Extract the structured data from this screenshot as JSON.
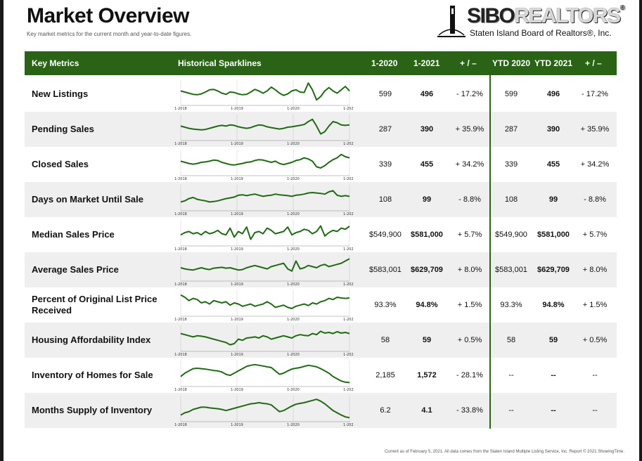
{
  "header": {
    "title": "Market Overview",
    "subtitle": "Key market metrics for the current month and year-to-date figures."
  },
  "logo": {
    "brand_a": "SIBO",
    "brand_b": "REALTORS",
    "registered": "®",
    "tagline": "Staten Island Board of Realtors®, Inc."
  },
  "columns": {
    "metrics": "Key Metrics",
    "sparklines": "Historical Sparklines",
    "month_prev": "1-2020",
    "month_cur": "1-2021",
    "change": "+ / –",
    "ytd_prev": "YTD 2020",
    "ytd_cur": "YTD 2021",
    "ytd_change": "+ / –"
  },
  "spark_ticks": [
    "1-2018",
    "1-2019",
    "1-2020",
    "1-2021"
  ],
  "rows": [
    {
      "metric": "New Listings",
      "m_prev": "599",
      "m_cur": "496",
      "m_chg": "- 17.2%",
      "y_prev": "599",
      "y_cur": "496",
      "y_chg": "- 17.2%",
      "spark": [
        0.55,
        0.5,
        0.45,
        0.4,
        0.38,
        0.42,
        0.5,
        0.6,
        0.62,
        0.55,
        0.45,
        0.4,
        0.5,
        0.48,
        0.42,
        0.38,
        0.4,
        0.5,
        0.62,
        0.55,
        0.45,
        0.55,
        0.72,
        0.6,
        0.45,
        0.35,
        0.42,
        0.55,
        0.6,
        0.5,
        0.48,
        0.9,
        0.6,
        0.15,
        0.3,
        0.55,
        0.7,
        0.55,
        0.45,
        0.6,
        0.75,
        0.55
      ]
    },
    {
      "metric": "Pending Sales",
      "m_prev": "287",
      "m_cur": "390",
      "m_chg": "+ 35.9%",
      "y_prev": "287",
      "y_cur": "390",
      "y_chg": "+ 35.9%",
      "spark": [
        0.55,
        0.5,
        0.45,
        0.42,
        0.4,
        0.38,
        0.4,
        0.45,
        0.5,
        0.55,
        0.58,
        0.55,
        0.6,
        0.58,
        0.52,
        0.48,
        0.45,
        0.48,
        0.55,
        0.6,
        0.58,
        0.52,
        0.48,
        0.45,
        0.42,
        0.45,
        0.5,
        0.52,
        0.55,
        0.58,
        0.62,
        0.75,
        0.85,
        0.55,
        0.2,
        0.3,
        0.55,
        0.75,
        0.7,
        0.6,
        0.58,
        0.6
      ]
    },
    {
      "metric": "Closed Sales",
      "m_prev": "339",
      "m_cur": "455",
      "m_chg": "+ 34.2%",
      "y_prev": "339",
      "y_cur": "455",
      "y_chg": "+ 34.2%",
      "spark": [
        0.55,
        0.5,
        0.45,
        0.42,
        0.45,
        0.5,
        0.52,
        0.55,
        0.6,
        0.58,
        0.5,
        0.45,
        0.4,
        0.38,
        0.42,
        0.45,
        0.5,
        0.52,
        0.58,
        0.62,
        0.6,
        0.55,
        0.5,
        0.55,
        0.45,
        0.4,
        0.45,
        0.5,
        0.58,
        0.62,
        0.7,
        0.65,
        0.55,
        0.3,
        0.25,
        0.35,
        0.5,
        0.62,
        0.7,
        0.85,
        0.75,
        0.7
      ]
    },
    {
      "metric": "Days on Market Until Sale",
      "m_prev": "108",
      "m_cur": "99",
      "m_chg": "- 8.8%",
      "y_prev": "108",
      "y_cur": "99",
      "y_chg": "- 8.8%",
      "spark": [
        0.3,
        0.35,
        0.45,
        0.5,
        0.42,
        0.38,
        0.35,
        0.3,
        0.32,
        0.35,
        0.4,
        0.45,
        0.48,
        0.52,
        0.6,
        0.62,
        0.58,
        0.62,
        0.65,
        0.6,
        0.55,
        0.58,
        0.6,
        0.65,
        0.62,
        0.6,
        0.58,
        0.55,
        0.6,
        0.62,
        0.65,
        0.7,
        0.72,
        0.7,
        0.68,
        0.65,
        0.75,
        0.8,
        0.6,
        0.55,
        0.58,
        0.55
      ]
    },
    {
      "metric": "Median Sales Price",
      "m_prev": "$549,900",
      "m_cur": "$581,000",
      "m_chg": "+ 5.7%",
      "y_prev": "$549,900",
      "y_cur": "$581,000",
      "y_chg": "+ 5.7%",
      "spark": [
        0.4,
        0.5,
        0.55,
        0.45,
        0.5,
        0.4,
        0.55,
        0.45,
        0.5,
        0.6,
        0.45,
        0.4,
        0.7,
        0.3,
        0.55,
        0.45,
        0.75,
        0.2,
        0.5,
        0.55,
        0.45,
        0.7,
        0.6,
        0.45,
        0.5,
        0.55,
        0.75,
        0.4,
        0.5,
        0.55,
        0.65,
        0.6,
        0.45,
        0.55,
        0.8,
        0.35,
        0.5,
        0.6,
        0.55,
        0.7,
        0.65,
        0.78
      ]
    },
    {
      "metric": "Average Sales Price",
      "m_prev": "$583,001",
      "m_cur": "$629,709",
      "m_chg": "+ 8.0%",
      "y_prev": "$583,001",
      "y_cur": "$629,709",
      "y_chg": "+ 8.0%",
      "spark": [
        0.5,
        0.45,
        0.42,
        0.4,
        0.45,
        0.5,
        0.45,
        0.42,
        0.48,
        0.5,
        0.52,
        0.48,
        0.5,
        0.45,
        0.4,
        0.42,
        0.5,
        0.55,
        0.6,
        0.55,
        0.5,
        0.45,
        0.55,
        0.6,
        0.65,
        0.7,
        0.45,
        0.35,
        0.8,
        0.45,
        0.5,
        0.6,
        0.55,
        0.5,
        0.6,
        0.65,
        0.55,
        0.6,
        0.65,
        0.7,
        0.8,
        0.9
      ]
    },
    {
      "metric": "Percent of Original List Price Received",
      "m_prev": "93.3%",
      "m_cur": "94.8%",
      "m_chg": "+ 1.5%",
      "y_prev": "93.3%",
      "y_cur": "94.8%",
      "y_chg": "+ 1.5%",
      "spark": [
        0.85,
        0.75,
        0.6,
        0.7,
        0.65,
        0.5,
        0.55,
        0.45,
        0.6,
        0.55,
        0.5,
        0.55,
        0.4,
        0.5,
        0.45,
        0.35,
        0.4,
        0.45,
        0.35,
        0.4,
        0.45,
        0.55,
        0.45,
        0.3,
        0.35,
        0.4,
        0.3,
        0.25,
        0.35,
        0.4,
        0.45,
        0.38,
        0.5,
        0.45,
        0.55,
        0.6,
        0.7,
        0.65,
        0.75,
        0.72,
        0.7,
        0.72
      ]
    },
    {
      "metric": "Housing Affordability Index",
      "m_prev": "58",
      "m_cur": "59",
      "m_chg": "+ 0.5%",
      "y_prev": "58",
      "y_cur": "59",
      "y_chg": "+ 0.5%",
      "spark": [
        0.7,
        0.65,
        0.6,
        0.55,
        0.6,
        0.58,
        0.55,
        0.5,
        0.45,
        0.4,
        0.35,
        0.3,
        0.2,
        0.25,
        0.45,
        0.4,
        0.5,
        0.52,
        0.55,
        0.5,
        0.6,
        0.55,
        0.45,
        0.5,
        0.55,
        0.6,
        0.55,
        0.5,
        0.6,
        0.65,
        0.62,
        0.6,
        0.7,
        0.65,
        0.8,
        0.72,
        0.75,
        0.7,
        0.78,
        0.72,
        0.75,
        0.7
      ]
    },
    {
      "metric": "Inventory of Homes for Sale",
      "m_prev": "2,185",
      "m_cur": "1,572",
      "m_chg": "- 28.1%",
      "y_prev": "--",
      "y_cur": "--",
      "y_chg": "--",
      "spark": [
        0.35,
        0.5,
        0.6,
        0.7,
        0.72,
        0.7,
        0.68,
        0.65,
        0.62,
        0.6,
        0.55,
        0.45,
        0.4,
        0.5,
        0.6,
        0.7,
        0.8,
        0.85,
        0.88,
        0.85,
        0.82,
        0.78,
        0.75,
        0.6,
        0.45,
        0.5,
        0.6,
        0.68,
        0.72,
        0.75,
        0.8,
        0.85,
        0.82,
        0.78,
        0.7,
        0.6,
        0.5,
        0.35,
        0.25,
        0.15,
        0.1,
        0.08
      ]
    },
    {
      "metric": "Months Supply of Inventory",
      "m_prev": "6.2",
      "m_cur": "4.1",
      "m_chg": "- 33.8%",
      "y_prev": "--",
      "y_cur": "--",
      "y_chg": "--",
      "spark": [
        0.2,
        0.3,
        0.35,
        0.45,
        0.5,
        0.55,
        0.55,
        0.52,
        0.5,
        0.48,
        0.45,
        0.4,
        0.45,
        0.5,
        0.55,
        0.6,
        0.65,
        0.7,
        0.72,
        0.75,
        0.72,
        0.7,
        0.65,
        0.5,
        0.35,
        0.4,
        0.5,
        0.6,
        0.68,
        0.72,
        0.75,
        0.8,
        0.85,
        0.9,
        0.82,
        0.7,
        0.55,
        0.4,
        0.3,
        0.2,
        0.12,
        0.08
      ]
    }
  ],
  "footer": "Current as of February 5, 2021. All data comes from the Staten Island Multiple Listing Service, Inc. Report © 2021 ShowingTime.",
  "colors": {
    "header_green": "#2a6316",
    "sparkline_green": "#1f6b12",
    "alt_row": "#efefef"
  }
}
